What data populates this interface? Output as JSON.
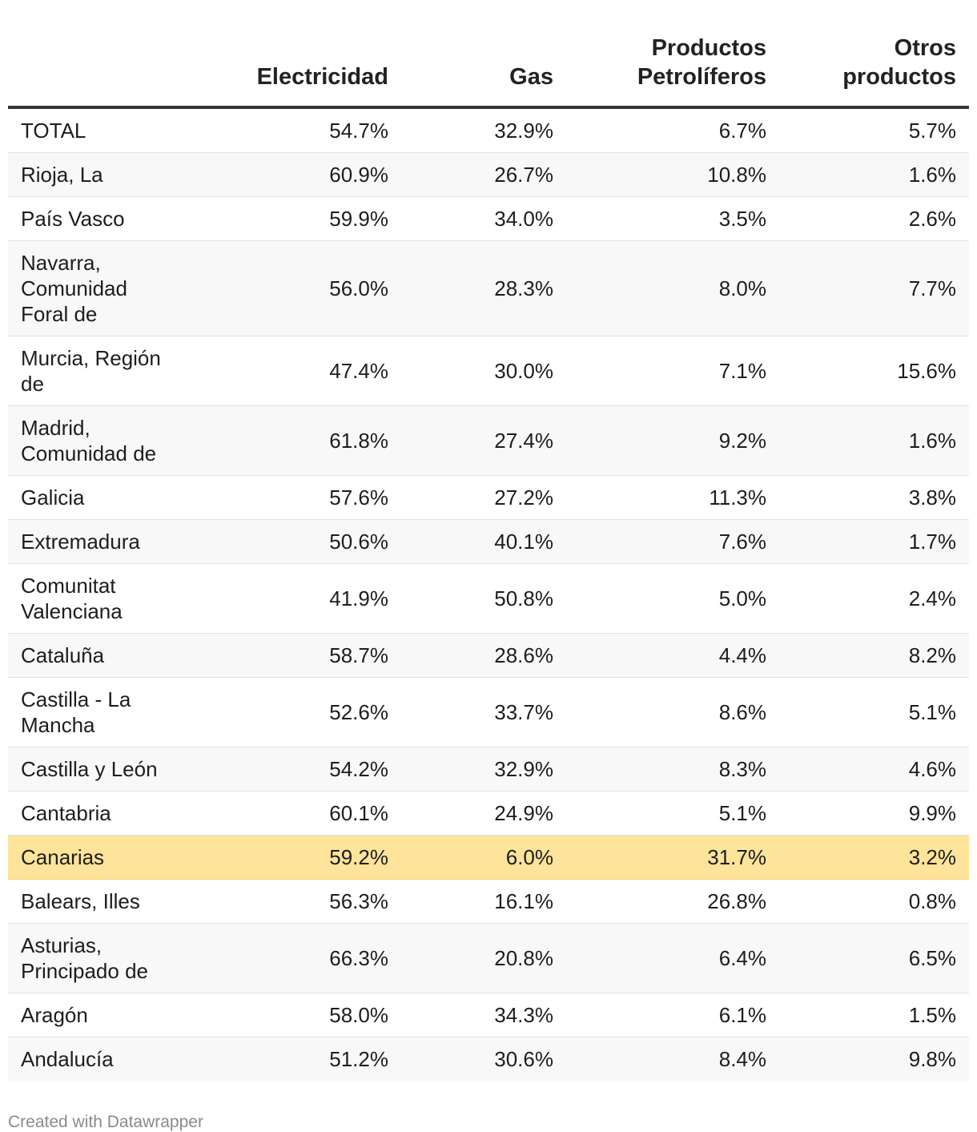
{
  "chart_data": {
    "type": "table",
    "columns": [
      "",
      "Electricidad",
      "Gas",
      "Productos Petrolíferos",
      "Otros productos"
    ],
    "header_lines": [
      [
        ""
      ],
      [
        "Electricidad"
      ],
      [
        "Gas"
      ],
      [
        "Productos",
        "Petrolíferos"
      ],
      [
        "Otros",
        "productos"
      ]
    ],
    "rows": [
      {
        "region": "TOTAL",
        "values": [
          "54.7%",
          "32.9%",
          "6.7%",
          "5.7%"
        ]
      },
      {
        "region": "Rioja, La",
        "values": [
          "60.9%",
          "26.7%",
          "10.8%",
          "1.6%"
        ]
      },
      {
        "region": "País Vasco",
        "values": [
          "59.9%",
          "34.0%",
          "3.5%",
          "2.6%"
        ]
      },
      {
        "region": "Navarra, Comunidad Foral de",
        "values": [
          "56.0%",
          "28.3%",
          "8.0%",
          "7.7%"
        ]
      },
      {
        "region": "Murcia, Región de",
        "values": [
          "47.4%",
          "30.0%",
          "7.1%",
          "15.6%"
        ]
      },
      {
        "region": "Madrid, Comunidad de",
        "values": [
          "61.8%",
          "27.4%",
          "9.2%",
          "1.6%"
        ]
      },
      {
        "region": "Galicia",
        "values": [
          "57.6%",
          "27.2%",
          "11.3%",
          "3.8%"
        ]
      },
      {
        "region": "Extremadura",
        "values": [
          "50.6%",
          "40.1%",
          "7.6%",
          "1.7%"
        ]
      },
      {
        "region": "Comunitat Valenciana",
        "values": [
          "41.9%",
          "50.8%",
          "5.0%",
          "2.4%"
        ]
      },
      {
        "region": "Cataluña",
        "values": [
          "58.7%",
          "28.6%",
          "4.4%",
          "8.2%"
        ]
      },
      {
        "region": "Castilla - La Mancha",
        "values": [
          "52.6%",
          "33.7%",
          "8.6%",
          "5.1%"
        ]
      },
      {
        "region": "Castilla y León",
        "values": [
          "54.2%",
          "32.9%",
          "8.3%",
          "4.6%"
        ]
      },
      {
        "region": "Cantabria",
        "values": [
          "60.1%",
          "24.9%",
          "5.1%",
          "9.9%"
        ]
      },
      {
        "region": "Canarias",
        "values": [
          "59.2%",
          "6.0%",
          "31.7%",
          "3.2%"
        ],
        "highlight": true
      },
      {
        "region": "Balears, Illes",
        "values": [
          "56.3%",
          "16.1%",
          "26.8%",
          "0.8%"
        ]
      },
      {
        "region": "Asturias, Principado de",
        "values": [
          "66.3%",
          "20.8%",
          "6.4%",
          "6.5%"
        ]
      },
      {
        "region": "Aragón",
        "values": [
          "58.0%",
          "34.3%",
          "6.1%",
          "1.5%"
        ]
      },
      {
        "region": "Andalucía",
        "values": [
          "51.2%",
          "30.6%",
          "8.4%",
          "9.8%"
        ]
      }
    ]
  },
  "colors": {
    "highlight": "#fde49a",
    "stripe": "#f8f8f8",
    "header_rule": "#333333",
    "footer_text": "#8a8a8a"
  },
  "footer": {
    "credit": "Created with Datawrapper"
  }
}
